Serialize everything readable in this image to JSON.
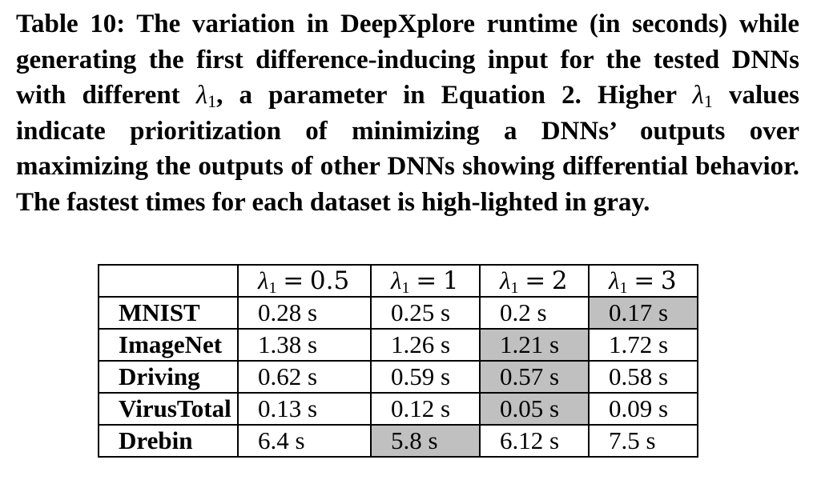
{
  "caption": {
    "label": "Table 10:",
    "text_a": "The variation in DeepXplore runtime (in seconds) while generating the first difference-inducing input for the tested DNNs with different",
    "text_b": ", a parameter in Equation 2. Higher",
    "text_c": "values indicate prioritization of minimizing a DNNs’ outputs over maximizing the outputs of other DNNs showing differential behavior. The fastest times for each dataset is high-lighted in gray.",
    "lambda_symbol": "λ",
    "lambda_subscript": "1"
  },
  "table": {
    "highlight_color": "#c0c0c0",
    "columns": [
      {
        "symbol": "λ",
        "subscript": "1",
        "relation": "=",
        "value": "0.5"
      },
      {
        "symbol": "λ",
        "subscript": "1",
        "relation": "=",
        "value": "1"
      },
      {
        "symbol": "λ",
        "subscript": "1",
        "relation": "=",
        "value": "2"
      },
      {
        "symbol": "λ",
        "subscript": "1",
        "relation": "=",
        "value": "3"
      }
    ],
    "rows": [
      {
        "name": "MNIST",
        "cells": [
          "0.28 s",
          "0.25 s",
          "0.2 s",
          "0.17 s"
        ],
        "highlight": 3
      },
      {
        "name": "ImageNet",
        "cells": [
          "1.38 s",
          "1.26 s",
          "1.21 s",
          "1.72 s"
        ],
        "highlight": 2
      },
      {
        "name": "Driving",
        "cells": [
          "0.62 s",
          "0.59 s",
          "0.57 s",
          "0.58 s"
        ],
        "highlight": 2
      },
      {
        "name": "VirusTotal",
        "cells": [
          "0.13 s",
          "0.12 s",
          "0.05 s",
          "0.09 s"
        ],
        "highlight": 2
      },
      {
        "name": "Drebin",
        "cells": [
          "6.4 s",
          "5.8 s",
          "6.12 s",
          "7.5 s"
        ],
        "highlight": 1
      }
    ]
  }
}
